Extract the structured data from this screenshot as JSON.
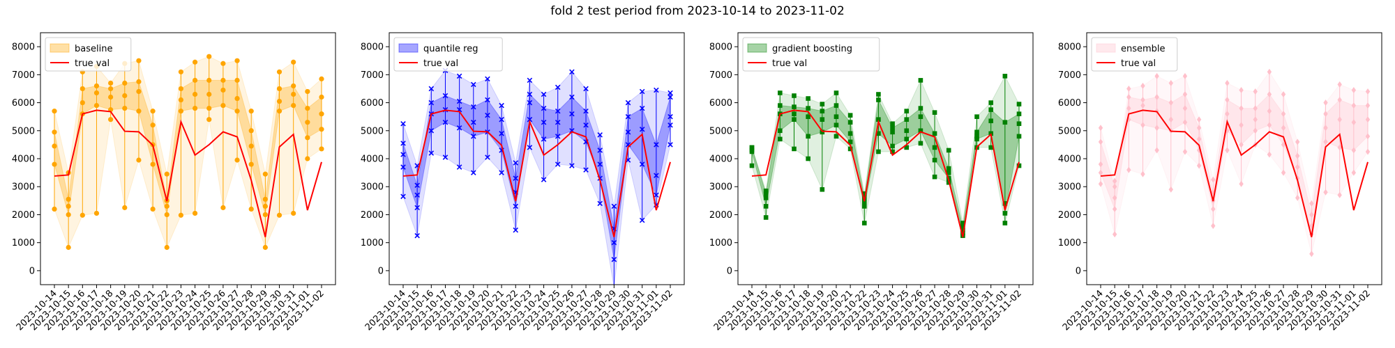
{
  "title": "fold 2 test period from 2023-10-14 to 2023-11-02",
  "chart_data": [
    {
      "type": "line",
      "series_name": "baseline",
      "color": "#ffa500",
      "marker": "circle",
      "legend": [
        "baseline",
        "true val"
      ],
      "legend_position": "upper-left",
      "ylim": [
        -500,
        8500
      ],
      "yticks": [
        0,
        1000,
        2000,
        3000,
        4000,
        5000,
        6000,
        7000,
        8000
      ],
      "true_val": [
        3380,
        3420,
        5600,
        5730,
        5680,
        4980,
        4960,
        4480,
        2480,
        5320,
        4130,
        4500,
        4960,
        4780,
        3230,
        1200,
        4420,
        4870,
        2160,
        3880
      ],
      "quantiles": [
        [
          2200,
          3800,
          4450,
          4950,
          5700
        ],
        [
          830,
          2000,
          2300,
          2550,
          3500
        ],
        [
          1980,
          5600,
          6000,
          6500,
          7100
        ],
        [
          2050,
          5900,
          6350,
          6600,
          7300
        ],
        [
          5400,
          5750,
          6200,
          6500,
          6700
        ],
        [
          2250,
          5800,
          6250,
          6700,
          7400
        ],
        [
          3950,
          5700,
          6400,
          6750,
          7500
        ],
        [
          2200,
          3800,
          4500,
          5200,
          5700
        ],
        [
          830,
          2000,
          2300,
          2500,
          3450
        ],
        [
          1980,
          5700,
          6100,
          6500,
          7100
        ],
        [
          2050,
          5800,
          6300,
          6800,
          7450
        ],
        [
          5400,
          5800,
          6300,
          6800,
          7650
        ],
        [
          2250,
          5900,
          6450,
          6800,
          7400
        ],
        [
          3950,
          5700,
          6150,
          6800,
          7500
        ],
        [
          2200,
          3800,
          4450,
          5000,
          5700
        ],
        [
          830,
          2000,
          2300,
          2550,
          3450
        ],
        [
          1980,
          5700,
          6050,
          6500,
          7100
        ],
        [
          2050,
          5900,
          6300,
          6600,
          7450
        ],
        [
          4000,
          4750,
          5300,
          5800,
          6400
        ],
        [
          4350,
          5050,
          5600,
          6200,
          6850
        ]
      ]
    },
    {
      "type": "line",
      "series_name": "quantile reg",
      "color": "#0000ff",
      "marker": "x",
      "legend": [
        "quantile reg",
        "true val"
      ],
      "legend_position": "upper-left",
      "ylim": [
        -500,
        8500
      ],
      "yticks": [
        0,
        1000,
        2000,
        3000,
        4000,
        5000,
        6000,
        7000,
        8000
      ],
      "true_val": [
        3380,
        3420,
        5600,
        5730,
        5680,
        4980,
        4960,
        4480,
        2480,
        5320,
        4130,
        4500,
        4960,
        4780,
        3230,
        1200,
        4420,
        4870,
        2160,
        3880
      ],
      "quantiles": [
        [
          2650,
          3700,
          4150,
          4550,
          5250
        ],
        [
          1250,
          2250,
          2700,
          3050,
          3750
        ],
        [
          4200,
          5000,
          5600,
          6000,
          6500
        ],
        [
          4050,
          5300,
          5750,
          6250,
          7150
        ],
        [
          3700,
          5100,
          5750,
          6050,
          6950
        ],
        [
          3500,
          4800,
          5300,
          5850,
          6650
        ],
        [
          4050,
          4950,
          5550,
          6100,
          6850
        ],
        [
          3500,
          4300,
          4900,
          5400,
          5900
        ],
        [
          1450,
          2300,
          2800,
          3300,
          3850
        ],
        [
          4400,
          5400,
          6000,
          6300,
          6800
        ],
        [
          3250,
          4700,
          5300,
          5800,
          6300
        ],
        [
          3800,
          4800,
          5300,
          5700,
          6550
        ],
        [
          3750,
          5000,
          5600,
          6200,
          7100
        ],
        [
          3600,
          4600,
          5200,
          5700,
          6500
        ],
        [
          2400,
          3300,
          3800,
          4300,
          4850
        ],
        [
          -600,
          400,
          1000,
          1500,
          2300
        ],
        [
          3950,
          4500,
          4950,
          5500,
          6000
        ],
        [
          1800,
          3800,
          5050,
          5800,
          6400
        ],
        [
          2350,
          2700,
          3400,
          4500,
          6450
        ],
        [
          4500,
          5200,
          5500,
          6200,
          6350
        ]
      ]
    },
    {
      "type": "line",
      "series_name": "gradient boosting",
      "color": "#008000",
      "marker": "square",
      "legend": [
        "gradient boosting",
        "true val"
      ],
      "legend_position": "upper-left",
      "ylim": [
        -500,
        8500
      ],
      "yticks": [
        0,
        1000,
        2000,
        3000,
        4000,
        5000,
        6000,
        7000,
        8000
      ],
      "true_val": [
        3380,
        3420,
        5600,
        5730,
        5680,
        4980,
        4960,
        4480,
        2480,
        5320,
        4130,
        4500,
        4960,
        4780,
        3230,
        1200,
        4420,
        4870,
        2160,
        3880
      ],
      "quantiles": [
        [
          3750,
          4250,
          4300,
          4400,
          4400
        ],
        [
          1900,
          2300,
          2600,
          2750,
          2850
        ],
        [
          4700,
          5000,
          5600,
          5900,
          6350
        ],
        [
          4350,
          5400,
          5600,
          5850,
          6250
        ],
        [
          4000,
          4800,
          5500,
          5800,
          6150
        ],
        [
          2900,
          4950,
          5400,
          5700,
          5950
        ],
        [
          4800,
          5200,
          5500,
          5900,
          6350
        ],
        [
          4350,
          4600,
          4900,
          5300,
          5550
        ],
        [
          1700,
          2300,
          2450,
          2600,
          2750
        ],
        [
          4250,
          4900,
          5400,
          6100,
          6300
        ],
        [
          4250,
          4450,
          4950,
          5100,
          5250
        ],
        [
          4400,
          4700,
          5000,
          5400,
          5700
        ],
        [
          4550,
          5000,
          5500,
          5800,
          6800
        ],
        [
          3350,
          3950,
          4400,
          4900,
          5650
        ],
        [
          3150,
          3300,
          3500,
          3650,
          4300
        ],
        [
          1250,
          1350,
          1450,
          1550,
          1700
        ],
        [
          4400,
          4700,
          4800,
          4950,
          5500
        ],
        [
          4400,
          4900,
          5350,
          5750,
          6000
        ],
        [
          1700,
          2050,
          2400,
          5300,
          6950
        ],
        [
          3750,
          4800,
          5250,
          5600,
          5950
        ]
      ]
    },
    {
      "type": "line",
      "series_name": "ensemble",
      "color": "#ffc0cb",
      "marker": "diamond",
      "legend": [
        "ensemble",
        "true val"
      ],
      "legend_position": "upper-left",
      "ylim": [
        -500,
        8500
      ],
      "yticks": [
        0,
        1000,
        2000,
        3000,
        4000,
        5000,
        6000,
        7000,
        8000
      ],
      "true_val": [
        3380,
        3420,
        5600,
        5730,
        5680,
        4980,
        4960,
        4480,
        2480,
        5320,
        4130,
        4500,
        4960,
        4780,
        3230,
        1200,
        4420,
        4870,
        2160,
        3880
      ],
      "quantiles": [
        [
          3100,
          3500,
          3800,
          4600,
          5100
        ],
        [
          1300,
          2200,
          2600,
          3000,
          3200
        ],
        [
          3600,
          5400,
          5800,
          6200,
          6500
        ],
        [
          3450,
          5200,
          5900,
          6100,
          6600
        ],
        [
          4300,
          5100,
          5700,
          6200,
          6950
        ],
        [
          2900,
          5000,
          5400,
          6000,
          6700
        ],
        [
          4250,
          5300,
          5800,
          6300,
          6950
        ],
        [
          3750,
          4300,
          4700,
          5100,
          5400
        ],
        [
          1600,
          2200,
          2500,
          2800,
          3250
        ],
        [
          4300,
          5000,
          5600,
          6100,
          6700
        ],
        [
          3100,
          4500,
          5200,
          5800,
          6450
        ],
        [
          4500,
          5000,
          5400,
          5800,
          6400
        ],
        [
          4150,
          5200,
          5700,
          6300,
          7100
        ],
        [
          3500,
          4500,
          5100,
          5600,
          6300
        ],
        [
          2600,
          3300,
          3700,
          4100,
          4600
        ],
        [
          600,
          1300,
          1600,
          2000,
          2400
        ],
        [
          2800,
          4600,
          5100,
          5600,
          6000
        ],
        [
          2700,
          4400,
          5400,
          6100,
          6650
        ],
        [
          3500,
          4300,
          5300,
          5900,
          6450
        ],
        [
          4250,
          4800,
          5400,
          5900,
          6400
        ]
      ]
    }
  ],
  "x_dates": [
    "2023-10-14",
    "2023-10-15",
    "2023-10-16",
    "2023-10-17",
    "2023-10-18",
    "2023-10-19",
    "2023-10-20",
    "2023-10-21",
    "2023-10-22",
    "2023-10-23",
    "2023-10-24",
    "2023-10-25",
    "2023-10-26",
    "2023-10-27",
    "2023-10-28",
    "2023-10-29",
    "2023-10-30",
    "2023-10-31",
    "2023-11-01",
    "2023-11-02"
  ],
  "true_val_color": "#ff0000"
}
